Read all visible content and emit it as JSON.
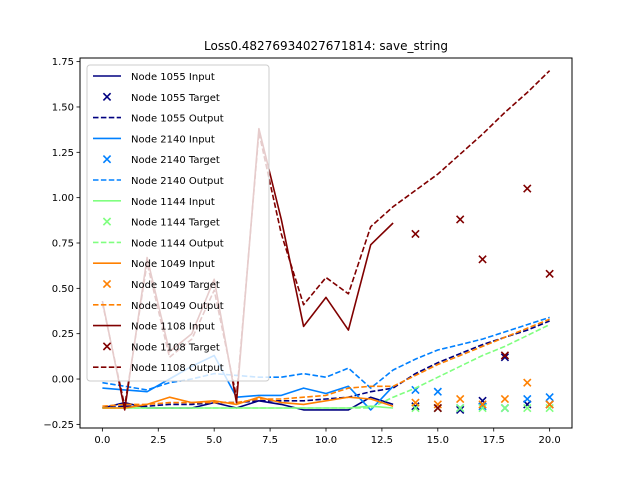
{
  "chart_data": {
    "type": "line",
    "title": "Loss0.48276934027671814: save_string",
    "xlabel": "",
    "ylabel": "",
    "xlim": [
      -1.0,
      21.0
    ],
    "ylim": [
      -0.27,
      1.77
    ],
    "xticks": [
      0.0,
      2.5,
      5.0,
      7.5,
      10.0,
      12.5,
      15.0,
      17.5,
      20.0
    ],
    "xtick_labels": [
      "0.0",
      "2.5",
      "5.0",
      "7.5",
      "10.0",
      "12.5",
      "15.0",
      "17.5",
      "20.0"
    ],
    "yticks": [
      -0.25,
      0.0,
      0.25,
      0.5,
      0.75,
      1.0,
      1.25,
      1.5,
      1.75
    ],
    "ytick_labels": [
      "−0.25",
      "0.00",
      "0.25",
      "0.50",
      "0.75",
      "1.00",
      "1.25",
      "1.50",
      "1.75"
    ],
    "legend_position": "top-left",
    "grid": false,
    "series": [
      {
        "name": "Node 1055 Input",
        "kind": "input",
        "color": "#000080",
        "x": [
          0,
          1,
          2,
          3,
          4,
          5,
          6,
          7,
          8,
          9,
          10,
          11,
          12,
          13
        ],
        "y": [
          -0.16,
          -0.13,
          -0.16,
          -0.16,
          -0.16,
          -0.13,
          -0.16,
          -0.12,
          -0.14,
          -0.17,
          -0.17,
          -0.17,
          -0.1,
          -0.14
        ]
      },
      {
        "name": "Node 1055 Target",
        "kind": "target",
        "color": "#000080",
        "x": [
          14,
          15,
          16,
          17,
          18,
          19,
          20
        ],
        "y": [
          -0.15,
          -0.16,
          -0.17,
          -0.12,
          0.12,
          -0.14,
          -0.14
        ]
      },
      {
        "name": "Node 1055 Output",
        "kind": "output",
        "color": "#000080",
        "x": [
          0,
          1,
          2,
          3,
          4,
          5,
          6,
          7,
          8,
          9,
          10,
          11,
          12,
          13,
          14,
          15,
          16,
          17,
          18,
          19,
          20
        ],
        "y": [
          -0.16,
          -0.15,
          -0.15,
          -0.14,
          -0.14,
          -0.13,
          -0.13,
          -0.12,
          -0.12,
          -0.12,
          -0.11,
          -0.1,
          -0.07,
          -0.05,
          0.03,
          0.09,
          0.14,
          0.19,
          0.23,
          0.27,
          0.32
        ]
      },
      {
        "name": "Node 2140 Input",
        "kind": "input",
        "color": "#0080ff",
        "x": [
          0,
          1,
          2,
          3,
          4,
          5,
          6,
          7,
          8,
          9,
          10,
          11,
          12,
          13
        ],
        "y": [
          -0.05,
          -0.06,
          -0.07,
          0.0,
          0.07,
          0.13,
          -0.1,
          -0.09,
          -0.09,
          -0.05,
          -0.08,
          -0.04,
          -0.17,
          -0.04
        ]
      },
      {
        "name": "Node 2140 Target",
        "kind": "target",
        "color": "#0080ff",
        "x": [
          14,
          15,
          16,
          17,
          18,
          19,
          20
        ],
        "y": [
          -0.06,
          -0.07,
          -0.16,
          -0.15,
          -0.16,
          -0.11,
          -0.1
        ]
      },
      {
        "name": "Node 2140 Output",
        "kind": "output",
        "color": "#0080ff",
        "x": [
          0,
          1,
          2,
          3,
          4,
          5,
          6,
          7,
          8,
          9,
          10,
          11,
          12,
          13,
          14,
          15,
          16,
          17,
          18,
          19,
          20
        ],
        "y": [
          -0.02,
          -0.04,
          -0.06,
          -0.02,
          0.0,
          0.03,
          0.02,
          0.01,
          0.01,
          0.03,
          0.01,
          0.06,
          -0.05,
          0.05,
          0.11,
          0.16,
          0.19,
          0.22,
          0.26,
          0.3,
          0.34
        ]
      },
      {
        "name": "Node 1144 Input",
        "kind": "input",
        "color": "#80ff80",
        "x": [
          0,
          1,
          2,
          3,
          4,
          5,
          6,
          7,
          8,
          9,
          10,
          11,
          12,
          13
        ],
        "y": [
          -0.16,
          -0.16,
          -0.16,
          -0.16,
          -0.16,
          -0.16,
          -0.16,
          -0.16,
          -0.16,
          -0.16,
          -0.16,
          -0.16,
          -0.15,
          -0.16
        ]
      },
      {
        "name": "Node 1144 Target",
        "kind": "target",
        "color": "#80ff80",
        "x": [
          14,
          15,
          16,
          17,
          18,
          19,
          20
        ],
        "y": [
          -0.16,
          -0.16,
          -0.16,
          -0.16,
          -0.16,
          -0.16,
          -0.16
        ]
      },
      {
        "name": "Node 1144 Output",
        "kind": "output",
        "color": "#80ff80",
        "x": [
          0,
          1,
          2,
          3,
          4,
          5,
          6,
          7,
          8,
          9,
          10,
          11,
          12,
          13,
          14,
          15,
          16,
          17,
          18,
          19,
          20
        ],
        "y": [
          -0.16,
          -0.16,
          -0.16,
          -0.16,
          -0.16,
          -0.16,
          -0.16,
          -0.16,
          -0.16,
          -0.16,
          -0.16,
          -0.16,
          -0.16,
          -0.1,
          -0.05,
          0.01,
          0.07,
          0.13,
          0.18,
          0.24,
          0.3
        ]
      },
      {
        "name": "Node 1049 Input",
        "kind": "input",
        "color": "#ff8000",
        "x": [
          0,
          1,
          2,
          3,
          4,
          5,
          6,
          7,
          8,
          9,
          10,
          11,
          12,
          13
        ],
        "y": [
          -0.16,
          -0.16,
          -0.14,
          -0.1,
          -0.13,
          -0.12,
          -0.14,
          -0.1,
          -0.13,
          -0.14,
          -0.12,
          -0.1,
          -0.11,
          -0.15
        ]
      },
      {
        "name": "Node 1049 Target",
        "kind": "target",
        "color": "#ff8000",
        "x": [
          14,
          15,
          16,
          17,
          18,
          19,
          20
        ],
        "y": [
          -0.13,
          -0.14,
          -0.11,
          -0.14,
          -0.11,
          -0.02,
          -0.14
        ]
      },
      {
        "name": "Node 1049 Output",
        "kind": "output",
        "color": "#ff8000",
        "x": [
          0,
          1,
          2,
          3,
          4,
          5,
          6,
          7,
          8,
          9,
          10,
          11,
          12,
          13,
          14,
          15,
          16,
          17,
          18,
          19,
          20
        ],
        "y": [
          -0.15,
          -0.14,
          -0.14,
          -0.13,
          -0.13,
          -0.13,
          -0.13,
          -0.11,
          -0.11,
          -0.1,
          -0.09,
          -0.05,
          -0.04,
          -0.04,
          0.02,
          0.08,
          0.13,
          0.18,
          0.23,
          0.28,
          0.33
        ]
      },
      {
        "name": "Node 1108 Input",
        "kind": "input",
        "color": "#800000",
        "x": [
          0,
          1,
          2,
          3,
          4,
          5,
          6,
          7,
          8,
          9,
          10,
          11,
          12,
          13
        ],
        "y": [
          0.43,
          -0.17,
          0.67,
          0.15,
          0.25,
          0.55,
          -0.13,
          1.38,
          0.88,
          0.29,
          0.45,
          0.27,
          0.74,
          0.86
        ]
      },
      {
        "name": "Node 1108 Target",
        "kind": "target",
        "color": "#800000",
        "x": [
          14,
          15,
          16,
          17,
          18,
          19,
          20
        ],
        "y": [
          0.8,
          -0.16,
          0.88,
          0.66,
          0.13,
          1.05,
          0.58
        ]
      },
      {
        "name": "Node 1108 Output",
        "kind": "output",
        "color": "#800000",
        "x": [
          0,
          1,
          2,
          3,
          4,
          5,
          6,
          7,
          8,
          9,
          10,
          11,
          12,
          13,
          14,
          15,
          16,
          17,
          18,
          19,
          20
        ],
        "y": [
          0.42,
          -0.15,
          0.64,
          0.12,
          0.22,
          0.49,
          -0.1,
          1.36,
          0.8,
          0.41,
          0.56,
          0.47,
          0.84,
          0.95,
          1.04,
          1.13,
          1.24,
          1.35,
          1.47,
          1.58,
          1.7
        ]
      }
    ]
  }
}
